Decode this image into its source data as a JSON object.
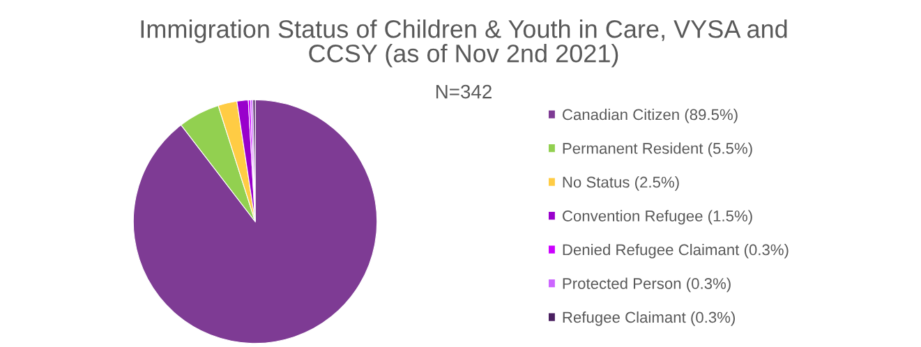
{
  "chart_data": {
    "type": "pie",
    "title": "Immigration Status of Children & Youth in Care, VYSA and CCSY (as of Nov 2nd 2021)",
    "subtitle": "N=342",
    "categories": [
      "Canadian Citizen (89.5%)",
      "Permanent Resident (5.5%)",
      "No Status (2.5%)",
      "Convention Refugee (1.5%)",
      "Denied Refugee Claimant (0.3%)",
      "Protected Person (0.3%)",
      "Refugee Claimant (0.3%)"
    ],
    "values": [
      89.5,
      5.5,
      2.5,
      1.5,
      0.3,
      0.3,
      0.3
    ],
    "colors": [
      "#7e3b94",
      "#92d050",
      "#ffcc44",
      "#9900cc",
      "#cc00ff",
      "#cc66ff",
      "#4a2060"
    ],
    "legend": "right"
  }
}
